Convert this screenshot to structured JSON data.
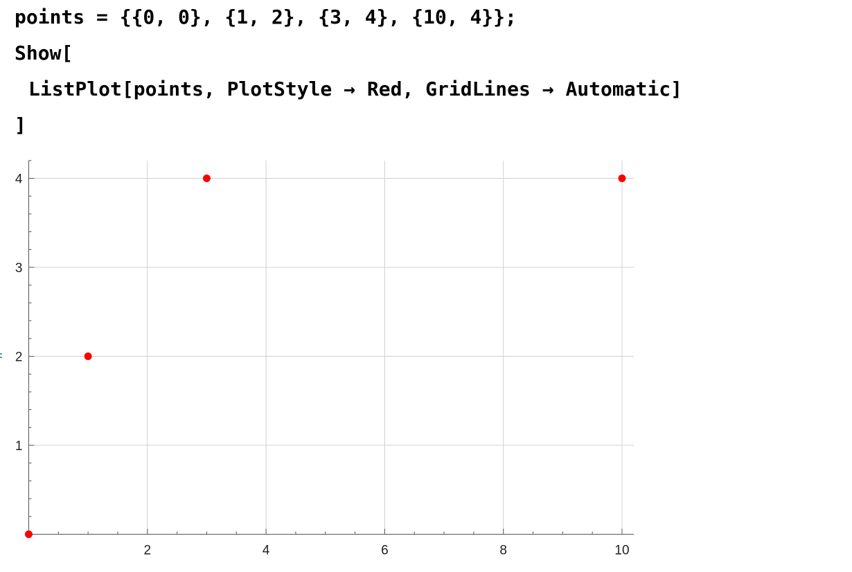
{
  "code": {
    "line1": "points = {{0, 0}, {1, 2}, {3, 4}, {10, 4}};",
    "line2": "Show[",
    "line3": "ListPlot[points, PlotStyle → Red, GridLines → Automatic]",
    "line4": "]"
  },
  "chart_data": {
    "type": "scatter",
    "series": [
      {
        "x": [
          0,
          1,
          3,
          10
        ],
        "y": [
          0,
          2,
          4,
          4
        ],
        "color": "#ff0000"
      }
    ],
    "title": "",
    "xlabel": "",
    "ylabel": "",
    "xlim": [
      0,
      10.2
    ],
    "ylim": [
      0,
      4.2
    ],
    "x_ticks": [
      2,
      4,
      6,
      8,
      10
    ],
    "y_ticks": [
      1,
      2,
      3,
      4
    ],
    "x_minor_step": 0.5,
    "y_minor_step": 0.2,
    "grid": true,
    "grid_color": "#d0d0d0",
    "axis_color": "#555555"
  }
}
